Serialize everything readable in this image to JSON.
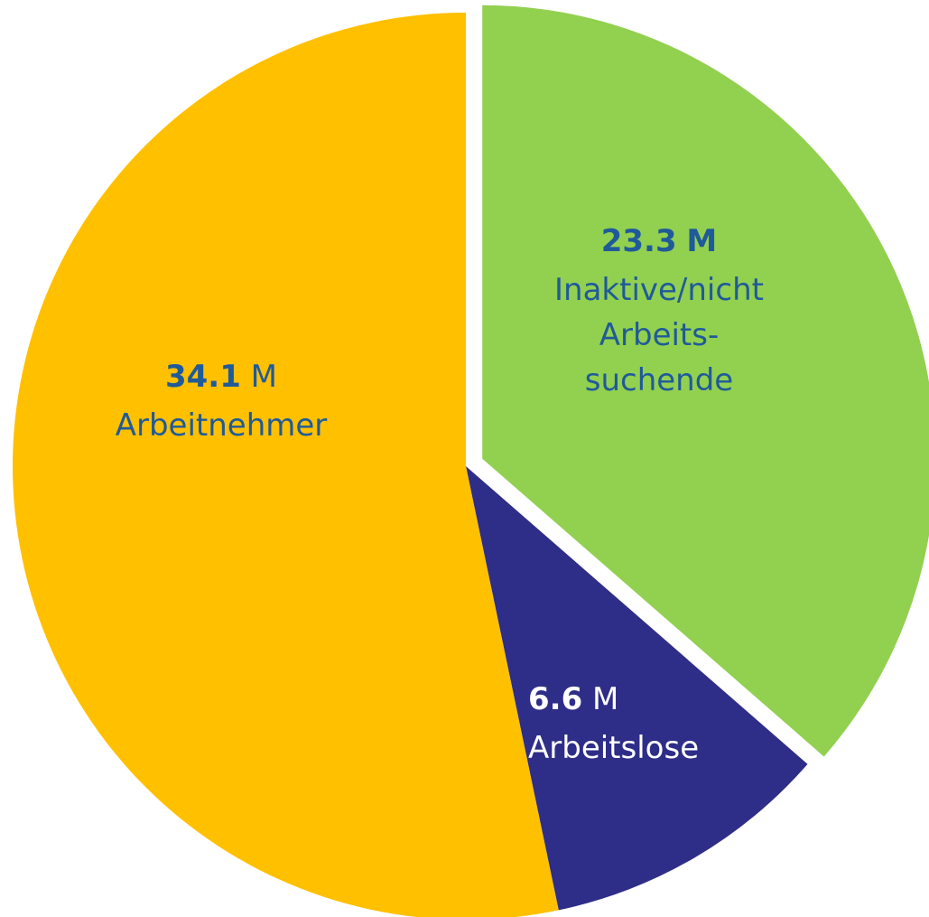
{
  "chart_data": {
    "type": "pie",
    "categories": [
      "Inaktive/nicht Arbeits- suchende",
      "Arbeitslose",
      "Arbeitnehmer"
    ],
    "values": [
      23.3,
      6.6,
      34.1
    ],
    "unit": "M",
    "colors": [
      "#92d050",
      "#2e2d88",
      "#ffc000"
    ],
    "label_colors": [
      "#1f5a9a",
      "#ffffff",
      "#1f5a9a"
    ],
    "start_angle": 0,
    "direction": "clockwise",
    "exploded": [
      0
    ]
  }
}
